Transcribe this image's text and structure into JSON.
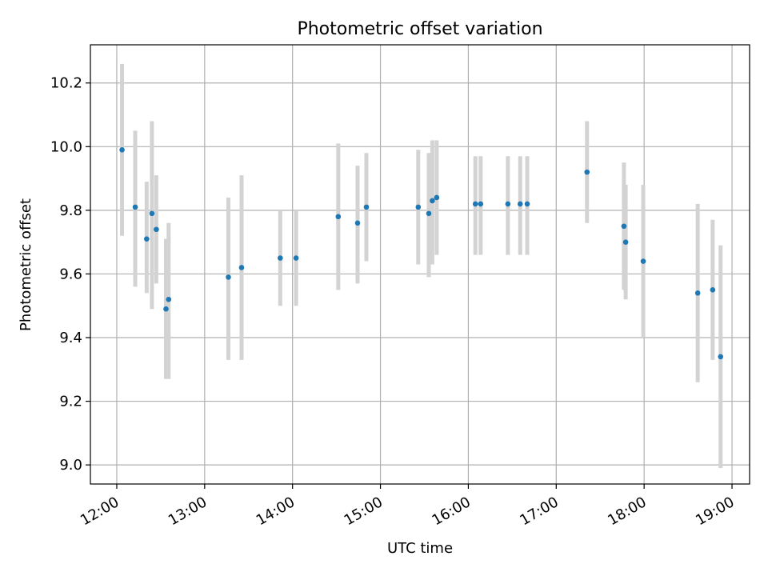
{
  "chart_data": {
    "type": "scatter",
    "title": "Photometric offset variation",
    "xlabel": "UTC time",
    "ylabel": "Photometric offset",
    "x_unit": "hours (UTC)",
    "xlim": [
      11.7,
      19.2
    ],
    "ylim": [
      8.94,
      10.32
    ],
    "grid": true,
    "x_ticks": [
      {
        "value": 12,
        "label": "12:00"
      },
      {
        "value": 13,
        "label": "13:00"
      },
      {
        "value": 14,
        "label": "14:00"
      },
      {
        "value": 15,
        "label": "15:00"
      },
      {
        "value": 16,
        "label": "16:00"
      },
      {
        "value": 17,
        "label": "17:00"
      },
      {
        "value": 18,
        "label": "18:00"
      },
      {
        "value": 19,
        "label": "19:00"
      }
    ],
    "y_ticks": [
      {
        "value": 9.0,
        "label": "9.0"
      },
      {
        "value": 9.2,
        "label": "9.2"
      },
      {
        "value": 9.4,
        "label": "9.4"
      },
      {
        "value": 9.6,
        "label": "9.6"
      },
      {
        "value": 9.8,
        "label": "9.8"
      },
      {
        "value": 10.0,
        "label": "10.0"
      },
      {
        "value": 10.2,
        "label": "10.2"
      }
    ],
    "marker_color": "#1f77b4",
    "errorbar_color": "#d3d3d3",
    "points": [
      {
        "x": 12.06,
        "y": 9.99,
        "ylo": 9.72,
        "yhi": 10.26
      },
      {
        "x": 12.21,
        "y": 9.81,
        "ylo": 9.56,
        "yhi": 10.05
      },
      {
        "x": 12.34,
        "y": 9.71,
        "ylo": 9.54,
        "yhi": 9.89
      },
      {
        "x": 12.4,
        "y": 9.79,
        "ylo": 9.49,
        "yhi": 10.08
      },
      {
        "x": 12.45,
        "y": 9.74,
        "ylo": 9.57,
        "yhi": 9.91
      },
      {
        "x": 12.56,
        "y": 9.49,
        "ylo": 9.27,
        "yhi": 9.71
      },
      {
        "x": 12.59,
        "y": 9.52,
        "ylo": 9.27,
        "yhi": 9.76
      },
      {
        "x": 13.27,
        "y": 9.59,
        "ylo": 9.33,
        "yhi": 9.84
      },
      {
        "x": 13.42,
        "y": 9.62,
        "ylo": 9.33,
        "yhi": 9.91
      },
      {
        "x": 13.86,
        "y": 9.65,
        "ylo": 9.5,
        "yhi": 9.8
      },
      {
        "x": 14.04,
        "y": 9.65,
        "ylo": 9.5,
        "yhi": 9.8
      },
      {
        "x": 14.52,
        "y": 9.78,
        "ylo": 9.55,
        "yhi": 10.01
      },
      {
        "x": 14.74,
        "y": 9.76,
        "ylo": 9.57,
        "yhi": 9.94
      },
      {
        "x": 14.84,
        "y": 9.81,
        "ylo": 9.64,
        "yhi": 9.98
      },
      {
        "x": 15.43,
        "y": 9.81,
        "ylo": 9.63,
        "yhi": 9.99
      },
      {
        "x": 15.55,
        "y": 9.79,
        "ylo": 9.59,
        "yhi": 9.98
      },
      {
        "x": 15.59,
        "y": 9.83,
        "ylo": 9.63,
        "yhi": 10.02
      },
      {
        "x": 15.64,
        "y": 9.84,
        "ylo": 9.66,
        "yhi": 10.02
      },
      {
        "x": 16.08,
        "y": 9.82,
        "ylo": 9.66,
        "yhi": 9.97
      },
      {
        "x": 16.14,
        "y": 9.82,
        "ylo": 9.66,
        "yhi": 9.97
      },
      {
        "x": 16.45,
        "y": 9.82,
        "ylo": 9.66,
        "yhi": 9.97
      },
      {
        "x": 16.59,
        "y": 9.82,
        "ylo": 9.66,
        "yhi": 9.97
      },
      {
        "x": 16.67,
        "y": 9.82,
        "ylo": 9.66,
        "yhi": 9.97
      },
      {
        "x": 17.35,
        "y": 9.92,
        "ylo": 9.76,
        "yhi": 10.08
      },
      {
        "x": 17.77,
        "y": 9.75,
        "ylo": 9.55,
        "yhi": 9.95
      },
      {
        "x": 17.79,
        "y": 9.7,
        "ylo": 9.52,
        "yhi": 9.88
      },
      {
        "x": 17.99,
        "y": 9.64,
        "ylo": 9.4,
        "yhi": 9.88
      },
      {
        "x": 18.61,
        "y": 9.54,
        "ylo": 9.26,
        "yhi": 9.82
      },
      {
        "x": 18.78,
        "y": 9.55,
        "ylo": 9.33,
        "yhi": 9.77
      },
      {
        "x": 18.87,
        "y": 9.34,
        "ylo": 8.99,
        "yhi": 9.69
      }
    ]
  }
}
